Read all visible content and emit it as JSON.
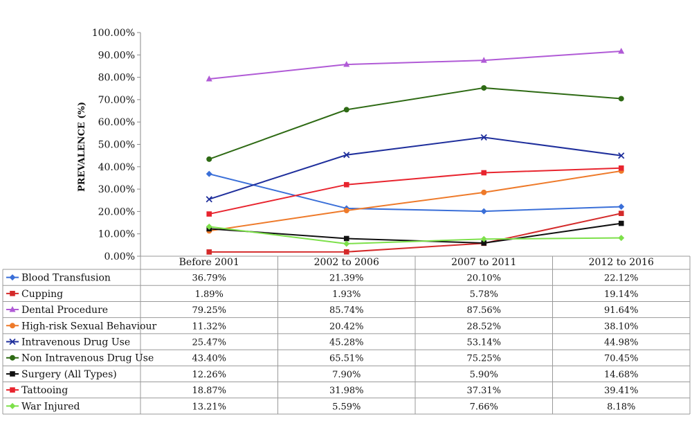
{
  "chart_data": {
    "type": "line",
    "title": "",
    "xlabel": "",
    "ylabel": "PREVALENCE (%)",
    "ylim": [
      0,
      100
    ],
    "yticks": [
      "0.00%",
      "10.00%",
      "20.00%",
      "30.00%",
      "40.00%",
      "50.00%",
      "60.00%",
      "70.00%",
      "80.00%",
      "90.00%",
      "100.00%"
    ],
    "grid": false,
    "legend": "data-table-below",
    "categories": [
      "Before 2001",
      "2002 to 2006",
      "2007 to 2011",
      "2012 to 2016"
    ],
    "series": [
      {
        "name": "Blood Transfusion",
        "color": "#3a6fd8",
        "marker": "diamond",
        "values": [
          36.79,
          21.39,
          20.1,
          22.12
        ],
        "labels": [
          "36.79%",
          "21.39%",
          "20.10%",
          "22.12%"
        ]
      },
      {
        "name": "Cupping",
        "color": "#d42a2a",
        "marker": "square",
        "values": [
          1.89,
          1.93,
          5.78,
          19.14
        ],
        "labels": [
          "1.89%",
          "1.93%",
          "5.78%",
          "19.14%"
        ]
      },
      {
        "name": "Dental Procedure",
        "color": "#b05ad6",
        "marker": "triangle",
        "values": [
          79.25,
          85.74,
          87.56,
          91.64
        ],
        "labels": [
          "79.25%",
          "85.74%",
          "87.56%",
          "91.64%"
        ]
      },
      {
        "name": "High-risk Sexual Behaviour",
        "color": "#ee7a2a",
        "marker": "circle",
        "values": [
          11.32,
          20.42,
          28.52,
          38.1
        ],
        "labels": [
          "11.32%",
          "20.42%",
          "28.52%",
          "38.10%"
        ]
      },
      {
        "name": "Intravenous Drug Use",
        "color": "#1f2f9c",
        "marker": "x",
        "values": [
          25.47,
          45.28,
          53.14,
          44.98
        ],
        "labels": [
          "25.47%",
          "45.28%",
          "53.14%",
          "44.98%"
        ]
      },
      {
        "name": "Non Intravenous Drug Use",
        "color": "#2e6a14",
        "marker": "circle",
        "values": [
          43.4,
          65.51,
          75.25,
          70.45
        ],
        "labels": [
          "43.40%",
          "65.51%",
          "75.25%",
          "70.45%"
        ]
      },
      {
        "name": "Surgery (All Types)",
        "color": "#111111",
        "marker": "square",
        "values": [
          12.26,
          7.9,
          5.9,
          14.68
        ],
        "labels": [
          "12.26%",
          "7.90%",
          "5.90%",
          "14.68%"
        ]
      },
      {
        "name": "Tattooing",
        "color": "#e8242e",
        "marker": "square",
        "values": [
          18.87,
          31.98,
          37.31,
          39.41
        ],
        "labels": [
          "18.87%",
          "31.98%",
          "37.31%",
          "39.41%"
        ]
      },
      {
        "name": "War Injured",
        "color": "#7de04a",
        "marker": "diamond",
        "values": [
          13.21,
          5.59,
          7.66,
          8.18
        ],
        "labels": [
          "13.21%",
          "5.59%",
          "7.66%",
          "8.18%"
        ]
      }
    ]
  }
}
